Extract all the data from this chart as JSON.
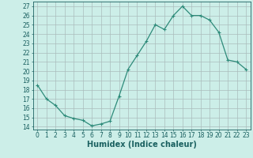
{
  "x": [
    0,
    1,
    2,
    3,
    4,
    5,
    6,
    7,
    8,
    9,
    10,
    11,
    12,
    13,
    14,
    15,
    16,
    17,
    18,
    19,
    20,
    21,
    22,
    23
  ],
  "y": [
    18.5,
    17.0,
    16.3,
    15.2,
    14.9,
    14.7,
    14.1,
    14.3,
    14.6,
    17.3,
    20.2,
    21.7,
    23.2,
    25.0,
    24.5,
    26.0,
    27.0,
    26.0,
    26.0,
    25.5,
    24.2,
    21.2,
    21.0,
    20.2
  ],
  "line_color": "#2e8b7a",
  "marker": "+",
  "marker_size": 3,
  "marker_lw": 0.8,
  "bg_color": "#cceee8",
  "grid_color": "#aabcbc",
  "xlabel": "Humidex (Indice chaleur)",
  "xlim": [
    -0.5,
    23.5
  ],
  "ylim": [
    13.7,
    27.5
  ],
  "yticks": [
    14,
    15,
    16,
    17,
    18,
    19,
    20,
    21,
    22,
    23,
    24,
    25,
    26,
    27
  ],
  "xticks": [
    0,
    1,
    2,
    3,
    4,
    5,
    6,
    7,
    8,
    9,
    10,
    11,
    12,
    13,
    14,
    15,
    16,
    17,
    18,
    19,
    20,
    21,
    22,
    23
  ],
  "tick_color": "#1a6060",
  "xlabel_fontsize": 7,
  "tick_fontsize": 5.5,
  "line_width": 0.9
}
